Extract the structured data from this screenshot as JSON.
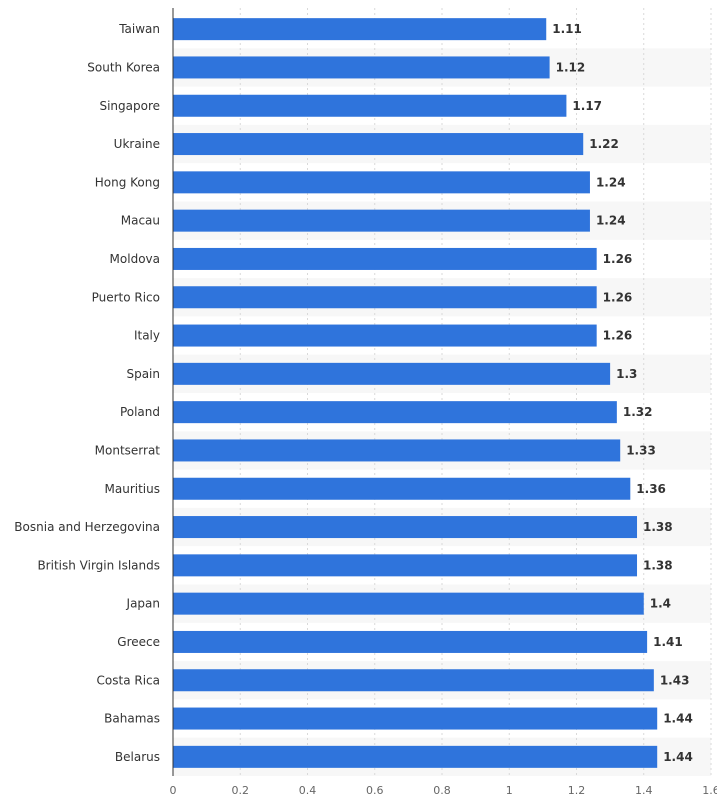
{
  "chart_data": {
    "type": "bar",
    "orientation": "horizontal",
    "categories": [
      "Taiwan",
      "South Korea",
      "Singapore",
      "Ukraine",
      "Hong Kong",
      "Macau",
      "Moldova",
      "Puerto Rico",
      "Italy",
      "Spain",
      "Poland",
      "Montserrat",
      "Mauritius",
      "Bosnia and Herzegovina",
      "British Virgin Islands",
      "Japan",
      "Greece",
      "Costa Rica",
      "Bahamas",
      "Belarus"
    ],
    "values": [
      1.11,
      1.12,
      1.17,
      1.22,
      1.24,
      1.24,
      1.26,
      1.26,
      1.26,
      1.3,
      1.32,
      1.33,
      1.36,
      1.38,
      1.38,
      1.4,
      1.41,
      1.43,
      1.44,
      1.44
    ],
    "value_labels": [
      "1.11",
      "1.12",
      "1.17",
      "1.22",
      "1.24",
      "1.24",
      "1.26",
      "1.26",
      "1.26",
      "1.3",
      "1.32",
      "1.33",
      "1.36",
      "1.38",
      "1.38",
      "1.4",
      "1.41",
      "1.43",
      "1.44",
      "1.44"
    ],
    "xlim": [
      0,
      1.6
    ],
    "x_ticks": [
      "0",
      "0.2",
      "0.4",
      "0.6",
      "0.8",
      "1",
      "1.2",
      "1.4",
      "1.6"
    ],
    "x_tick_values": [
      0,
      0.2,
      0.4,
      0.6,
      0.8,
      1,
      1.2,
      1.4,
      1.6
    ],
    "title": "",
    "xlabel": "",
    "ylabel": "",
    "grid": "vertical dashed",
    "legend": "none",
    "bar_color": "#2f74dc",
    "alt_row_color": "#f7f7f7",
    "axis_color": "#333333",
    "grid_color": "#d9d9d9"
  }
}
